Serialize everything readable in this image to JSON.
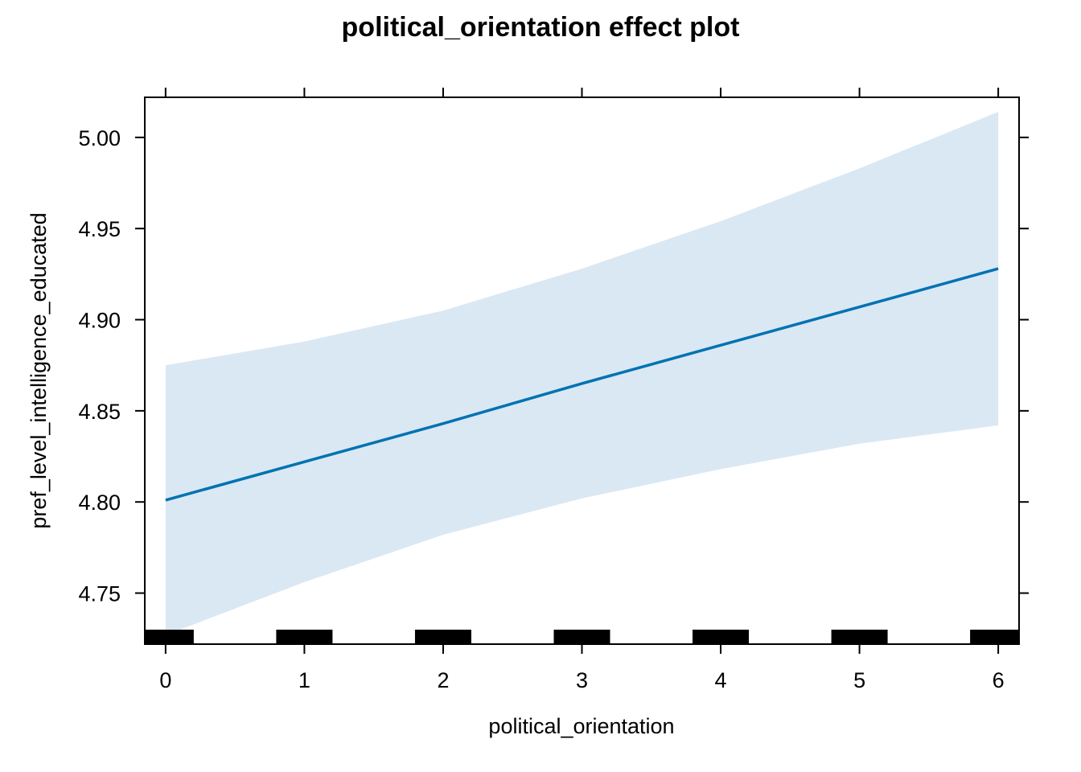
{
  "chart_data": {
    "type": "line",
    "title": "political_orientation effect plot",
    "xlabel": "political_orientation",
    "ylabel": "pref_level_intelligence_educated",
    "xlim": [
      -0.15,
      6.15
    ],
    "ylim": [
      4.722,
      5.022
    ],
    "x_ticks": [
      0,
      1,
      2,
      3,
      4,
      5,
      6
    ],
    "x_tick_labels": [
      "0",
      "1",
      "2",
      "3",
      "4",
      "5",
      "6"
    ],
    "y_ticks": [
      4.75,
      4.8,
      4.85,
      4.9,
      4.95,
      5.0
    ],
    "y_tick_labels": [
      "4.75",
      "4.80",
      "4.85",
      "4.90",
      "4.95",
      "5.00"
    ],
    "grid": false,
    "series": [
      {
        "x": [
          0,
          1,
          2,
          3,
          4,
          5,
          6
        ],
        "values": [
          4.801,
          4.822,
          4.843,
          4.865,
          4.886,
          4.907,
          4.928
        ],
        "lower": [
          4.727,
          4.756,
          4.782,
          4.802,
          4.818,
          4.832,
          4.842
        ],
        "upper": [
          4.875,
          4.888,
          4.905,
          4.928,
          4.954,
          4.983,
          5.014
        ],
        "line_color": "#0072B2",
        "band_color": "#DAE8F4"
      }
    ],
    "rug": [
      0,
      1,
      2,
      3,
      4,
      5,
      6
    ]
  }
}
